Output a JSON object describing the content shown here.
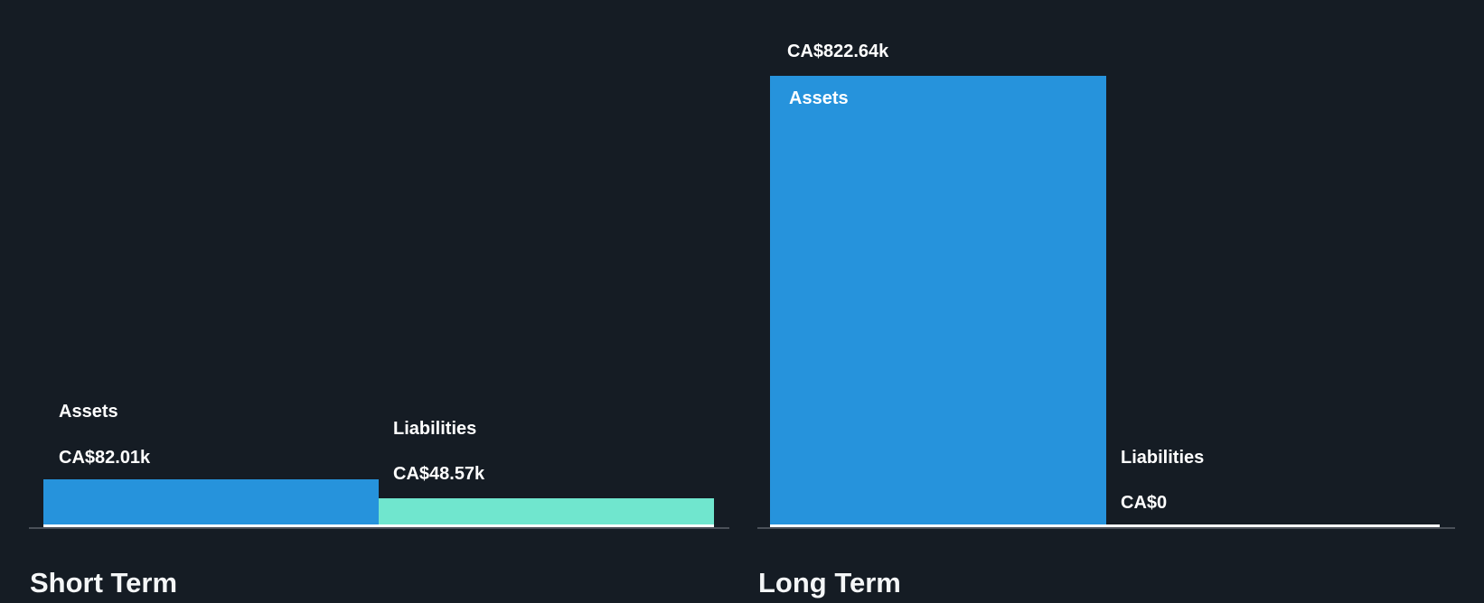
{
  "chart_data": [
    {
      "type": "bar",
      "title": "Short Term",
      "categories": [
        "Assets",
        "Liabilities"
      ],
      "values": [
        82.01,
        48.57
      ],
      "value_labels": [
        "CA$82.01k",
        "CA$48.57k"
      ],
      "unit": "CA$ thousands",
      "bar_colors": [
        "#2693DC",
        "#70E6CE"
      ],
      "ylim": [
        0,
        822.64
      ],
      "grid": false,
      "legend": "none"
    },
    {
      "type": "bar",
      "title": "Long Term",
      "categories": [
        "Assets",
        "Liabilities"
      ],
      "values": [
        822.64,
        0
      ],
      "value_labels": [
        "CA$822.64k",
        "CA$0"
      ],
      "unit": "CA$ thousands",
      "bar_colors": [
        "#2693DC",
        "#FFFFFF"
      ],
      "ylim": [
        0,
        822.64
      ],
      "grid": false,
      "legend": "none"
    }
  ],
  "short_term": {
    "title": "Short Term",
    "assets_label": "Assets",
    "assets_value": "CA$82.01k",
    "liabilities_label": "Liabilities",
    "liabilities_value": "CA$48.57k"
  },
  "long_term": {
    "title": "Long Term",
    "assets_label": "Assets",
    "assets_value": "CA$822.64k",
    "liabilities_label": "Liabilities",
    "liabilities_value": "CA$0"
  },
  "colors": {
    "background": "#151C24",
    "assets_bar": "#2693DC",
    "liabilities_bar": "#70E6CE",
    "zero_bar": "#FFFFFF",
    "axis_line": "#4A5058",
    "baseline": "#FFFFFF",
    "text": "#FFFFFF"
  }
}
